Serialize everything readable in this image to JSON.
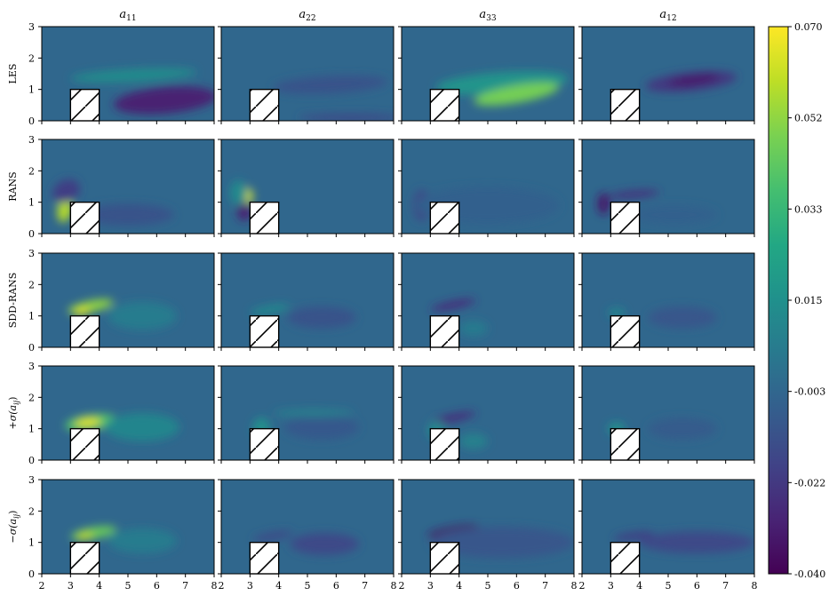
{
  "chart_data": {
    "type": "heatmap",
    "columns": [
      "a11",
      "a22",
      "a33",
      "a12"
    ],
    "rows": [
      "LES",
      "RANS",
      "SDD-RANS",
      "+σ(aij)",
      "−σ(aij)"
    ],
    "x_range": [
      2,
      8
    ],
    "y_range": [
      0,
      3
    ],
    "x_ticks": [
      "2",
      "3",
      "4",
      "5",
      "6",
      "7",
      "8"
    ],
    "y_ticks": [
      "0",
      "1",
      "2",
      "3"
    ],
    "obstacle": {
      "x": [
        3,
        4
      ],
      "y": [
        0,
        1
      ]
    },
    "colorbar": {
      "min": -0.04,
      "max": 0.07,
      "ticks": [
        "0.070",
        "0.052",
        "0.033",
        "0.015",
        "-0.003",
        "-0.022",
        "-0.040"
      ],
      "colormap": "viridis",
      "background_value": -0.003
    },
    "features": [
      [
        [
          {
            "x": 5.2,
            "y": 1.45,
            "rx": 2.2,
            "ry": 0.2,
            "v": 0.013,
            "a": -3
          },
          {
            "x": 6.3,
            "y": 0.65,
            "rx": 1.8,
            "ry": 0.42,
            "v": -0.03,
            "a": -5
          }
        ],
        [
          {
            "x": 5.8,
            "y": 1.15,
            "rx": 2.0,
            "ry": 0.28,
            "v": -0.012,
            "a": -3
          },
          {
            "x": 6.5,
            "y": 0.1,
            "rx": 1.8,
            "ry": 0.12,
            "v": -0.016,
            "a": 0
          }
        ],
        [
          {
            "x": 5.5,
            "y": 1.2,
            "rx": 2.3,
            "ry": 0.35,
            "v": 0.017,
            "a": -4
          },
          {
            "x": 6.0,
            "y": 0.85,
            "rx": 1.5,
            "ry": 0.28,
            "v": 0.047,
            "a": -10
          }
        ],
        [
          {
            "x": 5.8,
            "y": 1.25,
            "rx": 1.6,
            "ry": 0.3,
            "v": -0.022,
            "a": -6
          },
          {
            "x": 5.9,
            "y": 1.3,
            "rx": 0.9,
            "ry": 0.15,
            "v": -0.033,
            "a": -8
          }
        ]
      ],
      [
        [
          {
            "x": 2.8,
            "y": 0.8,
            "rx": 0.25,
            "ry": 0.45,
            "v": 0.058,
            "a": 10
          },
          {
            "x": 2.85,
            "y": 1.35,
            "rx": 0.5,
            "ry": 0.35,
            "v": -0.02,
            "a": -30
          },
          {
            "x": 5.0,
            "y": 0.6,
            "rx": 1.6,
            "ry": 0.35,
            "v": -0.012,
            "a": 0
          }
        ],
        [
          {
            "x": 2.95,
            "y": 1.2,
            "rx": 0.15,
            "ry": 0.25,
            "v": 0.062,
            "a": 0
          },
          {
            "x": 2.8,
            "y": 0.7,
            "rx": 0.25,
            "ry": 0.3,
            "v": -0.03,
            "a": 0
          },
          {
            "x": 2.6,
            "y": 1.3,
            "rx": 0.3,
            "ry": 0.4,
            "v": 0.012,
            "a": 0
          }
        ],
        [
          {
            "x": 2.7,
            "y": 0.9,
            "rx": 0.3,
            "ry": 0.5,
            "v": -0.016,
            "a": 0
          },
          {
            "x": 5.0,
            "y": 0.9,
            "rx": 2.5,
            "ry": 0.6,
            "v": -0.006,
            "a": 0
          }
        ],
        [
          {
            "x": 2.75,
            "y": 0.95,
            "rx": 0.2,
            "ry": 0.35,
            "v": -0.033,
            "a": 0
          },
          {
            "x": 3.8,
            "y": 1.25,
            "rx": 0.9,
            "ry": 0.12,
            "v": -0.024,
            "a": -5
          },
          {
            "x": 5.2,
            "y": 0.6,
            "rx": 1.5,
            "ry": 0.3,
            "v": -0.006,
            "a": 0
          }
        ]
      ],
      [
        [
          {
            "x": 3.7,
            "y": 1.3,
            "rx": 0.8,
            "ry": 0.18,
            "v": 0.052,
            "a": -12
          },
          {
            "x": 3.4,
            "y": 1.15,
            "rx": 0.3,
            "ry": 0.12,
            "v": 0.065,
            "a": -10
          },
          {
            "x": 5.5,
            "y": 1.0,
            "rx": 1.2,
            "ry": 0.45,
            "v": 0.006,
            "a": 0
          }
        ],
        [
          {
            "x": 3.7,
            "y": 1.2,
            "rx": 0.7,
            "ry": 0.13,
            "v": 0.012,
            "a": -10
          },
          {
            "x": 5.5,
            "y": 0.95,
            "rx": 1.2,
            "ry": 0.35,
            "v": -0.012,
            "a": 0
          }
        ],
        [
          {
            "x": 3.8,
            "y": 1.35,
            "rx": 0.8,
            "ry": 0.12,
            "v": -0.026,
            "a": -12
          },
          {
            "x": 4.5,
            "y": 0.6,
            "rx": 0.5,
            "ry": 0.25,
            "v": 0.005,
            "a": 0
          }
        ],
        [
          {
            "x": 3.2,
            "y": 1.1,
            "rx": 0.3,
            "ry": 0.15,
            "v": 0.01,
            "a": 0
          },
          {
            "x": 5.5,
            "y": 0.95,
            "rx": 1.2,
            "ry": 0.35,
            "v": -0.01,
            "a": 0
          }
        ]
      ],
      [
        [
          {
            "x": 3.7,
            "y": 1.2,
            "rx": 0.9,
            "ry": 0.25,
            "v": 0.04,
            "a": -8
          },
          {
            "x": 3.6,
            "y": 1.2,
            "rx": 0.45,
            "ry": 0.15,
            "v": 0.065,
            "a": -6
          },
          {
            "x": 5.5,
            "y": 1.05,
            "rx": 1.3,
            "ry": 0.45,
            "v": 0.01,
            "a": 0
          }
        ],
        [
          {
            "x": 3.4,
            "y": 1.0,
            "rx": 0.3,
            "ry": 0.35,
            "v": 0.015,
            "a": 0
          },
          {
            "x": 5.5,
            "y": 1.05,
            "rx": 1.3,
            "ry": 0.4,
            "v": -0.009,
            "a": 0
          },
          {
            "x": 5.2,
            "y": 1.5,
            "rx": 1.4,
            "ry": 0.12,
            "v": 0.008,
            "a": 0
          }
        ],
        [
          {
            "x": 3.8,
            "y": 1.35,
            "rx": 0.8,
            "ry": 0.12,
            "v": -0.026,
            "a": -12
          },
          {
            "x": 3.2,
            "y": 0.95,
            "rx": 0.3,
            "ry": 0.3,
            "v": 0.012,
            "a": 0
          },
          {
            "x": 4.5,
            "y": 0.6,
            "rx": 0.5,
            "ry": 0.25,
            "v": 0.008,
            "a": 0
          }
        ],
        [
          {
            "x": 3.2,
            "y": 1.0,
            "rx": 0.3,
            "ry": 0.2,
            "v": 0.015,
            "a": 0
          },
          {
            "x": 5.5,
            "y": 1.0,
            "rx": 1.2,
            "ry": 0.35,
            "v": -0.008,
            "a": 0
          }
        ]
      ],
      [
        [
          {
            "x": 3.8,
            "y": 1.3,
            "rx": 0.8,
            "ry": 0.18,
            "v": 0.045,
            "a": -10
          },
          {
            "x": 3.5,
            "y": 1.2,
            "rx": 0.3,
            "ry": 0.12,
            "v": 0.06,
            "a": -10
          },
          {
            "x": 5.5,
            "y": 1.05,
            "rx": 1.2,
            "ry": 0.4,
            "v": 0.006,
            "a": 0
          }
        ],
        [
          {
            "x": 3.8,
            "y": 1.2,
            "rx": 0.7,
            "ry": 0.12,
            "v": -0.016,
            "a": -10
          },
          {
            "x": 5.6,
            "y": 0.95,
            "rx": 1.2,
            "ry": 0.35,
            "v": -0.016,
            "a": 0
          }
        ],
        [
          {
            "x": 3.8,
            "y": 1.35,
            "rx": 0.9,
            "ry": 0.15,
            "v": -0.036,
            "a": -10
          },
          {
            "x": 5.5,
            "y": 1.0,
            "rx": 2.5,
            "ry": 0.5,
            "v": -0.01,
            "a": 0
          }
        ],
        [
          {
            "x": 3.8,
            "y": 1.2,
            "rx": 0.7,
            "ry": 0.12,
            "v": -0.02,
            "a": -8
          },
          {
            "x": 6.0,
            "y": 1.0,
            "rx": 2.0,
            "ry": 0.35,
            "v": -0.016,
            "a": 0
          }
        ]
      ]
    ]
  }
}
